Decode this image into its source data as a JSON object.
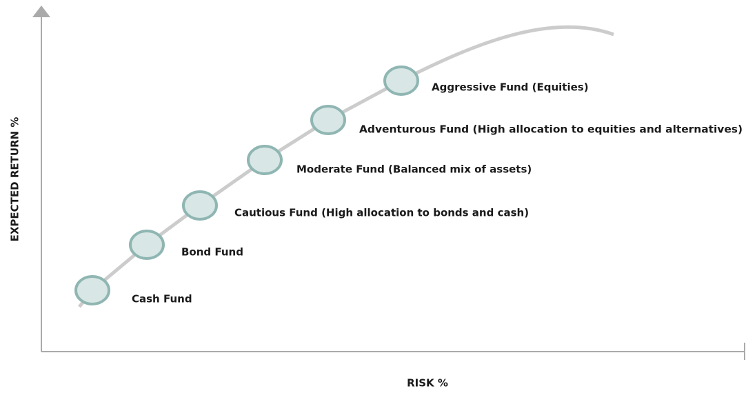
{
  "y_axis_label": "EXPECTED RETURN %",
  "x_axis_label": "RISK %",
  "nodes": [
    {
      "label": "Cash Fund"
    },
    {
      "label": "Bond Fund"
    },
    {
      "label": "Cautious Fund (High allocation to bonds and cash)"
    },
    {
      "label": "Moderate Fund (Balanced mix of assets)"
    },
    {
      "label": "Adventurous Fund (High allocation to equities and alternatives)"
    },
    {
      "label": "Aggressive Fund (Equities)"
    }
  ]
}
